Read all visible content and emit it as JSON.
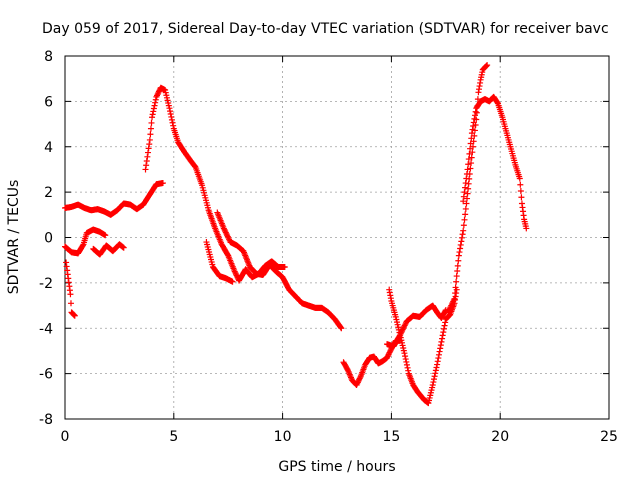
{
  "chart_data": {
    "type": "scatter",
    "title": "Day 059 of 2017, Sidereal Day-to-day VTEC variation (SDTVAR) for receiver bavc",
    "xlabel": "GPS time / hours",
    "ylabel": "SDTVAR / TECUs",
    "xlim": [
      0,
      25
    ],
    "ylim": [
      -8,
      8
    ],
    "xticks": [
      0,
      5,
      10,
      15,
      20,
      25
    ],
    "yticks": [
      -8,
      -6,
      -4,
      -2,
      0,
      2,
      4,
      6,
      8
    ],
    "grid": true,
    "marker": "+",
    "color": "#ff0000",
    "series": [
      {
        "points": [
          [
            0,
            1.3
          ],
          [
            0.3,
            1.35
          ],
          [
            0.6,
            1.45
          ],
          [
            0.9,
            1.3
          ],
          [
            1.2,
            1.2
          ],
          [
            1.5,
            1.25
          ],
          [
            1.8,
            1.15
          ],
          [
            2.1,
            1.0
          ],
          [
            2.4,
            1.2
          ],
          [
            2.7,
            1.5
          ],
          [
            3.0,
            1.45
          ],
          [
            3.3,
            1.25
          ],
          [
            3.6,
            1.45
          ],
          [
            3.9,
            1.9
          ],
          [
            4.2,
            2.35
          ],
          [
            4.5,
            2.4
          ]
        ]
      },
      {
        "points": [
          [
            0,
            -0.4
          ],
          [
            0.3,
            -0.65
          ],
          [
            0.6,
            -0.7
          ],
          [
            0.85,
            -0.3
          ],
          [
            1.0,
            0.2
          ],
          [
            1.3,
            0.35
          ],
          [
            1.6,
            0.25
          ],
          [
            1.85,
            0.1
          ]
        ]
      },
      {
        "points": [
          [
            1.3,
            -0.5
          ],
          [
            1.6,
            -0.75
          ],
          [
            1.9,
            -0.35
          ],
          [
            2.2,
            -0.6
          ],
          [
            2.5,
            -0.3
          ],
          [
            2.7,
            -0.45
          ]
        ]
      },
      {
        "points": [
          [
            0.05,
            -1.1
          ],
          [
            0.15,
            -1.8
          ],
          [
            0.25,
            -2.5
          ],
          [
            0.3,
            -3.3
          ],
          [
            0.45,
            -3.45
          ]
        ]
      },
      {
        "points": [
          [
            3.7,
            3.0
          ],
          [
            3.9,
            4.3
          ],
          [
            4.0,
            5.3
          ],
          [
            4.2,
            6.2
          ],
          [
            4.4,
            6.6
          ],
          [
            4.6,
            6.5
          ],
          [
            4.8,
            5.7
          ],
          [
            5.0,
            4.8
          ],
          [
            5.2,
            4.2
          ],
          [
            5.5,
            3.75
          ],
          [
            5.8,
            3.35
          ],
          [
            6.0,
            3.1
          ],
          [
            6.3,
            2.3
          ],
          [
            6.6,
            1.2
          ],
          [
            6.9,
            0.4
          ],
          [
            7.2,
            -0.3
          ],
          [
            7.5,
            -0.8
          ],
          [
            7.8,
            -1.5
          ],
          [
            8.0,
            -1.9
          ],
          [
            8.3,
            -1.4
          ],
          [
            8.6,
            -1.75
          ],
          [
            8.9,
            -1.6
          ],
          [
            9.2,
            -1.25
          ],
          [
            9.5,
            -1.05
          ],
          [
            9.8,
            -1.3
          ],
          [
            10.1,
            -1.3
          ]
        ]
      },
      {
        "points": [
          [
            6.5,
            -0.2
          ],
          [
            6.8,
            -1.3
          ],
          [
            7.1,
            -1.7
          ],
          [
            7.4,
            -1.8
          ],
          [
            7.7,
            -1.95
          ]
        ]
      },
      {
        "points": [
          [
            7.0,
            1.1
          ],
          [
            7.3,
            0.4
          ],
          [
            7.6,
            -0.2
          ],
          [
            7.9,
            -0.35
          ],
          [
            8.2,
            -0.6
          ],
          [
            8.5,
            -1.3
          ],
          [
            8.8,
            -1.6
          ],
          [
            9.1,
            -1.65
          ],
          [
            9.4,
            -1.2
          ],
          [
            9.7,
            -1.5
          ],
          [
            10.0,
            -1.75
          ],
          [
            10.3,
            -2.3
          ],
          [
            10.6,
            -2.6
          ],
          [
            10.9,
            -2.9
          ],
          [
            11.2,
            -3.0
          ],
          [
            11.5,
            -3.1
          ],
          [
            11.8,
            -3.1
          ],
          [
            12.1,
            -3.3
          ],
          [
            12.4,
            -3.6
          ],
          [
            12.7,
            -4.0
          ]
        ]
      },
      {
        "points": [
          [
            12.8,
            -5.5
          ],
          [
            13.0,
            -5.85
          ],
          [
            13.2,
            -6.3
          ],
          [
            13.4,
            -6.5
          ],
          [
            13.6,
            -6.1
          ],
          [
            13.8,
            -5.6
          ],
          [
            14.0,
            -5.3
          ],
          [
            14.2,
            -5.25
          ],
          [
            14.4,
            -5.55
          ],
          [
            14.6,
            -5.45
          ],
          [
            14.8,
            -5.3
          ],
          [
            15.0,
            -4.9
          ],
          [
            15.2,
            -4.55
          ],
          [
            15.4,
            -4.55
          ]
        ]
      },
      {
        "points": [
          [
            14.8,
            -4.7
          ],
          [
            15.1,
            -4.8
          ],
          [
            15.4,
            -4.3
          ],
          [
            15.7,
            -3.7
          ],
          [
            16.0,
            -3.45
          ],
          [
            16.3,
            -3.5
          ],
          [
            16.6,
            -3.2
          ],
          [
            16.9,
            -3.0
          ],
          [
            17.1,
            -3.3
          ],
          [
            17.3,
            -3.55
          ],
          [
            17.5,
            -3.2
          ]
        ]
      },
      {
        "points": [
          [
            14.9,
            -2.3
          ],
          [
            15.0,
            -2.8
          ],
          [
            15.2,
            -3.5
          ],
          [
            15.4,
            -4.3
          ],
          [
            15.6,
            -5.1
          ],
          [
            15.8,
            -6.0
          ],
          [
            16.0,
            -6.5
          ],
          [
            16.2,
            -6.8
          ],
          [
            16.5,
            -7.15
          ],
          [
            16.7,
            -7.3
          ],
          [
            16.9,
            -6.5
          ],
          [
            17.1,
            -5.6
          ],
          [
            17.3,
            -4.6
          ],
          [
            17.5,
            -3.6
          ],
          [
            17.7,
            -3.4
          ],
          [
            17.9,
            -2.9
          ],
          [
            18.0,
            -2.3
          ]
        ]
      },
      {
        "points": [
          [
            17.6,
            -3.3
          ],
          [
            17.9,
            -2.7
          ],
          [
            18.0,
            -1.7
          ],
          [
            18.1,
            -0.8
          ],
          [
            18.3,
            0.3
          ],
          [
            18.45,
            1.5
          ],
          [
            18.6,
            2.8
          ],
          [
            18.75,
            4.0
          ],
          [
            18.9,
            5.2
          ],
          [
            19.0,
            6.4
          ],
          [
            19.1,
            6.95
          ],
          [
            19.2,
            7.4
          ],
          [
            19.4,
            7.6
          ]
        ]
      },
      {
        "points": [
          [
            18.3,
            1.6
          ],
          [
            18.5,
            3.0
          ],
          [
            18.7,
            4.6
          ],
          [
            18.9,
            5.7
          ],
          [
            19.1,
            6.0
          ],
          [
            19.3,
            6.1
          ],
          [
            19.5,
            6.0
          ],
          [
            19.7,
            6.2
          ],
          [
            19.9,
            5.9
          ],
          [
            20.1,
            5.3
          ],
          [
            20.3,
            4.6
          ],
          [
            20.5,
            3.9
          ],
          [
            20.7,
            3.2
          ],
          [
            20.9,
            2.6
          ],
          [
            21.0,
            1.5
          ],
          [
            21.1,
            0.8
          ],
          [
            21.2,
            0.4
          ]
        ]
      }
    ]
  }
}
